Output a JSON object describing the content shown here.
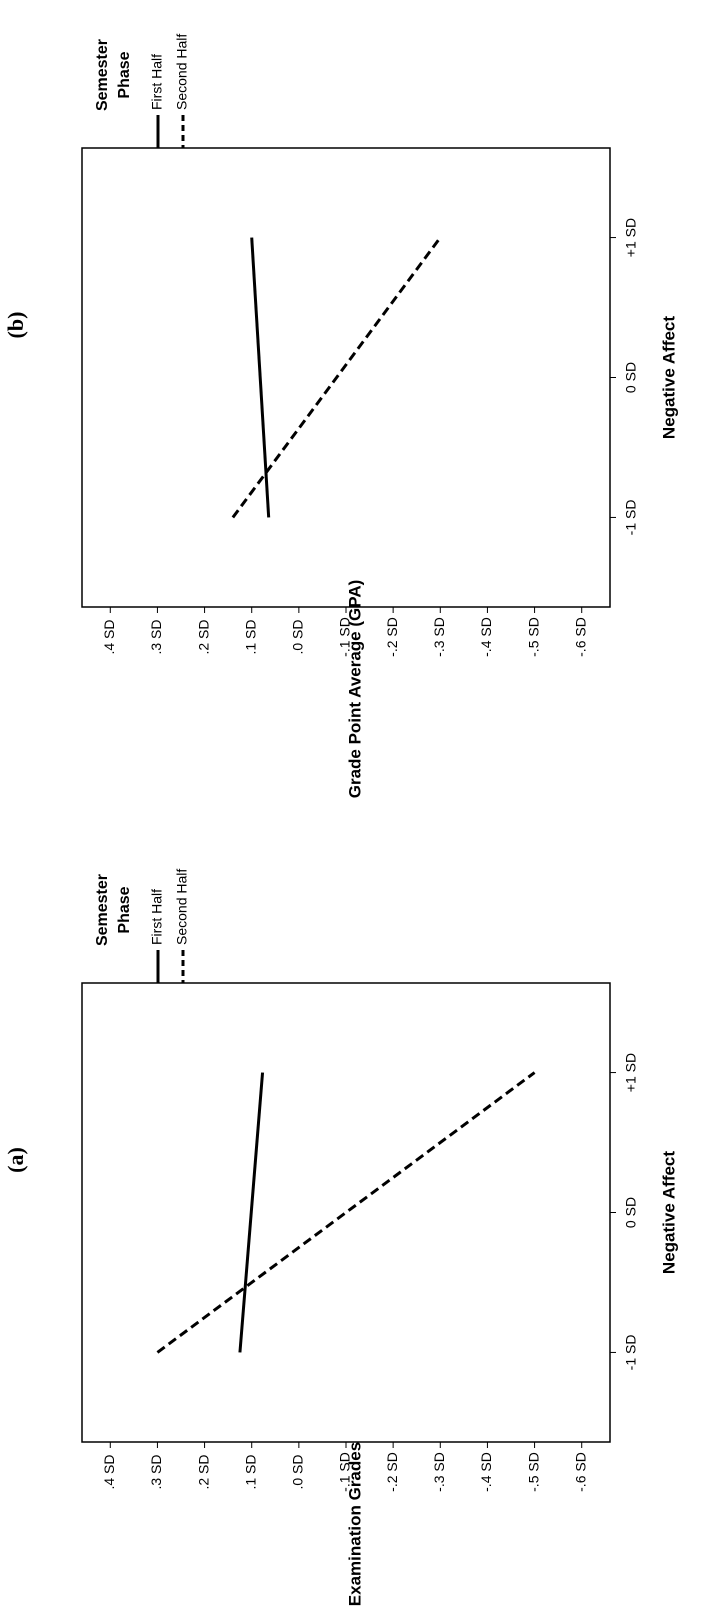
{
  "chart_data": [
    {
      "type": "line",
      "title": "(a)",
      "xlabel": "Negative Affect",
      "ylabel": "Examination Grades",
      "legend_title": [
        "Semester",
        "Phase"
      ],
      "x": [
        -1,
        1
      ],
      "series": [
        {
          "name": "First Half",
          "color": "#000000",
          "linestyle": "solid",
          "values": [
            0.125,
            0.077
          ]
        },
        {
          "name": "Second Half",
          "color": "#000000",
          "linestyle": "dashed",
          "values": [
            0.3,
            -0.5
          ]
        }
      ],
      "xlim": [
        -1.64,
        1.64
      ],
      "xticks": [
        {
          "value": -1,
          "label": "-1 SD"
        },
        {
          "value": 0,
          "label": "0 SD"
        },
        {
          "value": 1,
          "label": "+1 SD"
        }
      ],
      "ylim": [
        -0.66,
        0.46
      ],
      "yticks": [
        {
          "value": 0.4,
          "label": ".4 SD"
        },
        {
          "value": 0.3,
          "label": ".3 SD"
        },
        {
          "value": 0.2,
          "label": ".2 SD"
        },
        {
          "value": 0.1,
          "label": ".1 SD"
        },
        {
          "value": 0,
          "label": ".0 SD"
        },
        {
          "value": -0.1,
          "label": "-.1 SD"
        },
        {
          "value": -0.2,
          "label": "-.2 SD"
        },
        {
          "value": -0.3,
          "label": "-.3 SD"
        },
        {
          "value": -0.4,
          "label": "-.4 SD"
        },
        {
          "value": -0.5,
          "label": "-.5 SD"
        },
        {
          "value": -0.6,
          "label": "-.6 SD"
        }
      ]
    },
    {
      "type": "line",
      "title": "(b)",
      "xlabel": "Negative Affect",
      "ylabel": "Grade Point Average (GPA)",
      "legend_title": [
        "Semester",
        "Phase"
      ],
      "x": [
        -1,
        1
      ],
      "series": [
        {
          "name": "First Half",
          "color": "#000000",
          "linestyle": "solid",
          "values": [
            0.064,
            0.1
          ]
        },
        {
          "name": "Second Half",
          "color": "#000000",
          "linestyle": "dashed",
          "values": [
            0.14,
            -0.3
          ]
        }
      ],
      "xlim": [
        -1.64,
        1.64
      ],
      "xticks": [
        {
          "value": -1,
          "label": "-1 SD"
        },
        {
          "value": 0,
          "label": "0 SD"
        },
        {
          "value": 1,
          "label": "+1 SD"
        }
      ],
      "ylim": [
        -0.66,
        0.46
      ],
      "yticks": [
        {
          "value": 0.4,
          "label": ".4 SD"
        },
        {
          "value": 0.3,
          "label": ".3 SD"
        },
        {
          "value": 0.2,
          "label": ".2 SD"
        },
        {
          "value": 0.1,
          "label": ".1 SD"
        },
        {
          "value": 0,
          "label": ".0 SD"
        },
        {
          "value": -0.1,
          "label": "-.1 SD"
        },
        {
          "value": -0.2,
          "label": "-.2 SD"
        },
        {
          "value": -0.3,
          "label": "-.3 SD"
        },
        {
          "value": -0.4,
          "label": "-.4 SD"
        },
        {
          "value": -0.5,
          "label": "-.5 SD"
        },
        {
          "value": -0.6,
          "label": "-.6 SD"
        }
      ]
    }
  ]
}
